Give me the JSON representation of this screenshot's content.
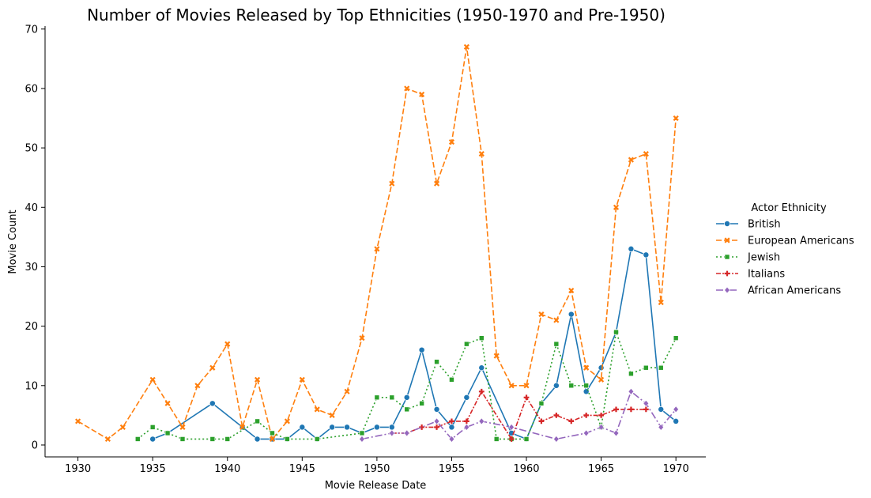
{
  "chart_data": {
    "type": "line",
    "title": "Number of Movies Released by Top Ethnicities (1950-1970 and Pre-1950)",
    "xlabel": "Movie Release Date",
    "ylabel": "Movie Count",
    "xlim": [
      1927.8,
      1972
    ],
    "ylim": [
      -2,
      70.5
    ],
    "xticks": [
      1930,
      1935,
      1940,
      1945,
      1950,
      1955,
      1960,
      1965,
      1970
    ],
    "yticks": [
      0,
      10,
      20,
      30,
      40,
      50,
      60,
      70
    ],
    "grid": false,
    "legend": {
      "title": "Actor Ethnicity",
      "position": "right"
    },
    "series": [
      {
        "name": "British",
        "color": "#1f77b4",
        "marker": "circle",
        "dash": "",
        "points": [
          [
            1935,
            1
          ],
          [
            1936,
            2
          ],
          [
            1939,
            7
          ],
          [
            1941,
            3
          ],
          [
            1942,
            1
          ],
          [
            1943,
            1
          ],
          [
            1944,
            1
          ],
          [
            1945,
            3
          ],
          [
            1946,
            1
          ],
          [
            1947,
            3
          ],
          [
            1948,
            3
          ],
          [
            1949,
            2
          ],
          [
            1950,
            3
          ],
          [
            1951,
            3
          ],
          [
            1952,
            8
          ],
          [
            1953,
            16
          ],
          [
            1954,
            6
          ],
          [
            1955,
            3
          ],
          [
            1956,
            8
          ],
          [
            1957,
            13
          ],
          [
            1959,
            2
          ],
          [
            1960,
            1
          ],
          [
            1961,
            7
          ],
          [
            1962,
            10
          ],
          [
            1963,
            22
          ],
          [
            1964,
            9
          ],
          [
            1965,
            13
          ],
          [
            1966,
            19
          ],
          [
            1967,
            33
          ],
          [
            1968,
            32
          ],
          [
            1969,
            6
          ],
          [
            1970,
            4
          ]
        ]
      },
      {
        "name": "European Americans",
        "color": "#ff7f0e",
        "marker": "x",
        "dash": "7,3",
        "points": [
          [
            1930,
            4
          ],
          [
            1932,
            1
          ],
          [
            1933,
            3
          ],
          [
            1935,
            11
          ],
          [
            1936,
            7
          ],
          [
            1937,
            3
          ],
          [
            1938,
            10
          ],
          [
            1939,
            13
          ],
          [
            1940,
            17
          ],
          [
            1941,
            3
          ],
          [
            1942,
            11
          ],
          [
            1943,
            1
          ],
          [
            1944,
            4
          ],
          [
            1945,
            11
          ],
          [
            1946,
            6
          ],
          [
            1947,
            5
          ],
          [
            1948,
            9
          ],
          [
            1949,
            18
          ],
          [
            1950,
            33
          ],
          [
            1951,
            44
          ],
          [
            1952,
            60
          ],
          [
            1953,
            59
          ],
          [
            1954,
            44
          ],
          [
            1955,
            51
          ],
          [
            1956,
            67
          ],
          [
            1957,
            49
          ],
          [
            1958,
            15
          ],
          [
            1959,
            10
          ],
          [
            1960,
            10
          ],
          [
            1961,
            22
          ],
          [
            1962,
            21
          ],
          [
            1963,
            26
          ],
          [
            1964,
            13
          ],
          [
            1965,
            11
          ],
          [
            1966,
            40
          ],
          [
            1967,
            48
          ],
          [
            1968,
            49
          ],
          [
            1969,
            24
          ],
          [
            1970,
            55
          ]
        ]
      },
      {
        "name": "Jewish",
        "color": "#2ca02c",
        "marker": "square",
        "dash": "2,3",
        "points": [
          [
            1934,
            1
          ],
          [
            1935,
            3
          ],
          [
            1936,
            2
          ],
          [
            1937,
            1
          ],
          [
            1939,
            1
          ],
          [
            1940,
            1
          ],
          [
            1942,
            4
          ],
          [
            1943,
            2
          ],
          [
            1944,
            1
          ],
          [
            1946,
            1
          ],
          [
            1949,
            2
          ],
          [
            1950,
            8
          ],
          [
            1951,
            8
          ],
          [
            1952,
            6
          ],
          [
            1953,
            7
          ],
          [
            1954,
            14
          ],
          [
            1955,
            11
          ],
          [
            1956,
            17
          ],
          [
            1957,
            18
          ],
          [
            1958,
            1
          ],
          [
            1959,
            1
          ],
          [
            1960,
            1
          ],
          [
            1961,
            7
          ],
          [
            1962,
            17
          ],
          [
            1963,
            10
          ],
          [
            1964,
            10
          ],
          [
            1965,
            3
          ],
          [
            1966,
            19
          ],
          [
            1967,
            12
          ],
          [
            1968,
            13
          ],
          [
            1969,
            13
          ],
          [
            1970,
            18
          ]
        ]
      },
      {
        "name": "Italians",
        "color": "#d62728",
        "marker": "plus",
        "dash": "6,2,2,2",
        "points": [
          [
            1951,
            2
          ],
          [
            1952,
            2
          ],
          [
            1953,
            3
          ],
          [
            1954,
            3
          ],
          [
            1955,
            4
          ],
          [
            1956,
            4
          ],
          [
            1957,
            9
          ],
          [
            1959,
            1
          ],
          [
            1960,
            8
          ],
          [
            1961,
            4
          ],
          [
            1962,
            5
          ],
          [
            1963,
            4
          ],
          [
            1964,
            5
          ],
          [
            1965,
            5
          ],
          [
            1966,
            6
          ],
          [
            1967,
            6
          ],
          [
            1968,
            6
          ]
        ]
      },
      {
        "name": "African Americans",
        "color": "#9467bd",
        "marker": "diamond",
        "dash": "9,3,2,3",
        "points": [
          [
            1949,
            1
          ],
          [
            1951,
            2
          ],
          [
            1952,
            2
          ],
          [
            1954,
            4
          ],
          [
            1955,
            1
          ],
          [
            1956,
            3
          ],
          [
            1957,
            4
          ],
          [
            1959,
            3
          ],
          [
            1962,
            1
          ],
          [
            1964,
            2
          ],
          [
            1965,
            3
          ],
          [
            1966,
            2
          ],
          [
            1967,
            9
          ],
          [
            1968,
            7
          ],
          [
            1969,
            3
          ],
          [
            1970,
            6
          ]
        ]
      }
    ]
  }
}
